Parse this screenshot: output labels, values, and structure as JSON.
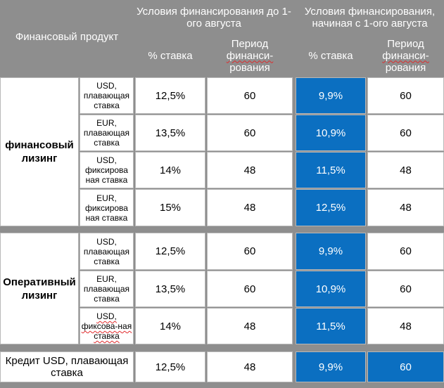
{
  "header": {
    "product_label": "Финансовый продукт",
    "before_label": "Условия финансирования до 1-ого августа",
    "after_label": "Условия финансирования, начиная с 1-ого августа",
    "rate_label": "% ставка",
    "period_label_1": "Период",
    "period_label_2": "финанси-",
    "period_label_3": "рования"
  },
  "groups": [
    {
      "name": "финансовый лизинг",
      "rows": [
        {
          "currency": "USD, плавающая ставка",
          "rate_before": "12,5%",
          "period_before": "60",
          "rate_after": "9,9%",
          "period_after": "60"
        },
        {
          "currency": "EUR, плавающая ставка",
          "rate_before": "13,5%",
          "period_before": "60",
          "rate_after": "10,9%",
          "period_after": "60"
        },
        {
          "currency": "USD, фиксирова ная ставка",
          "rate_before": "14%",
          "period_before": "48",
          "rate_after": "11,5%",
          "period_after": "48"
        },
        {
          "currency": "EUR, фиксирова ная ставка",
          "rate_before": "15%",
          "period_before": "48",
          "rate_after": "12,5%",
          "period_after": "48"
        }
      ]
    },
    {
      "name": "Оперативный лизинг",
      "rows": [
        {
          "currency": "USD, плавающая ставка",
          "rate_before": "12,5%",
          "period_before": "60",
          "rate_after": "9,9%",
          "period_after": "60"
        },
        {
          "currency": "EUR, плавающая ставка",
          "rate_before": "13,5%",
          "period_before": "60",
          "rate_after": "10,9%",
          "period_after": "60"
        },
        {
          "currency": "USD, фиксова-ная ставка",
          "rate_before": "14%",
          "period_before": "48",
          "rate_after": "11,5%",
          "period_after": "48"
        }
      ]
    }
  ],
  "credit": {
    "name": "Кредит USD, плавающая ставка",
    "rate_before": "12,5%",
    "period_before": "48",
    "rate_after": "9,9%",
    "period_after": "60"
  },
  "colors": {
    "header_bg": "#8e8e8e",
    "highlight": "#0b6fc1"
  }
}
